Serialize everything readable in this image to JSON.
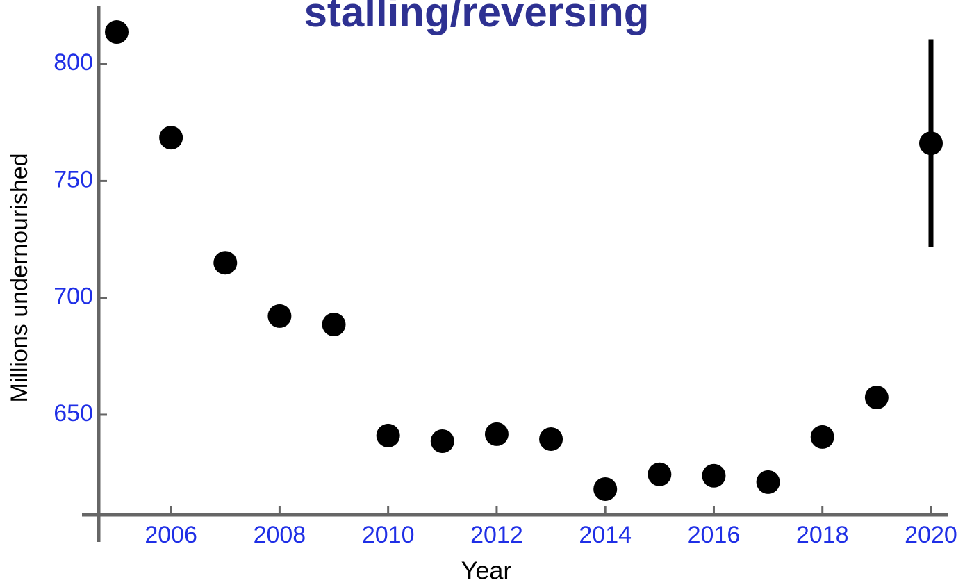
{
  "chart_data": {
    "type": "scatter",
    "title": "stalling/reversing",
    "x_label": "Year",
    "y_label": "Millions undernourished",
    "x": [
      2005,
      2006,
      2007,
      2008,
      2009,
      2010,
      2011,
      2012,
      2013,
      2014,
      2015,
      2016,
      2017,
      2018,
      2019,
      2020
    ],
    "values": [
      813.7,
      768.5,
      715.0,
      692.2,
      688.6,
      641.1,
      638.7,
      641.7,
      639.6,
      618.2,
      624.5,
      623.9,
      621.2,
      640.5,
      657.4,
      766.1
    ],
    "errors": [
      null,
      null,
      null,
      null,
      null,
      null,
      null,
      null,
      null,
      null,
      null,
      null,
      null,
      null,
      null,
      44.5
    ],
    "color": "#000000",
    "xlim": [
      2004.36,
      2020.32
    ],
    "ylim": [
      607.2,
      825
    ],
    "xticks": [
      2006,
      2008,
      2010,
      2012,
      2014,
      2016,
      2018,
      2020
    ],
    "yticks": [
      650,
      700,
      750,
      800
    ]
  }
}
